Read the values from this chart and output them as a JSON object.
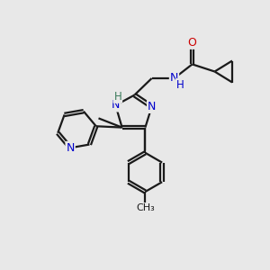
{
  "bg_color": "#e8e8e8",
  "bond_color": "#1a1a1a",
  "N_color": "#0000cc",
  "O_color": "#cc0000",
  "C_color": "#1a1a1a",
  "bond_width": 1.6,
  "font_size": 9,
  "xlim": [
    0,
    10
  ],
  "ylim": [
    0,
    10
  ]
}
